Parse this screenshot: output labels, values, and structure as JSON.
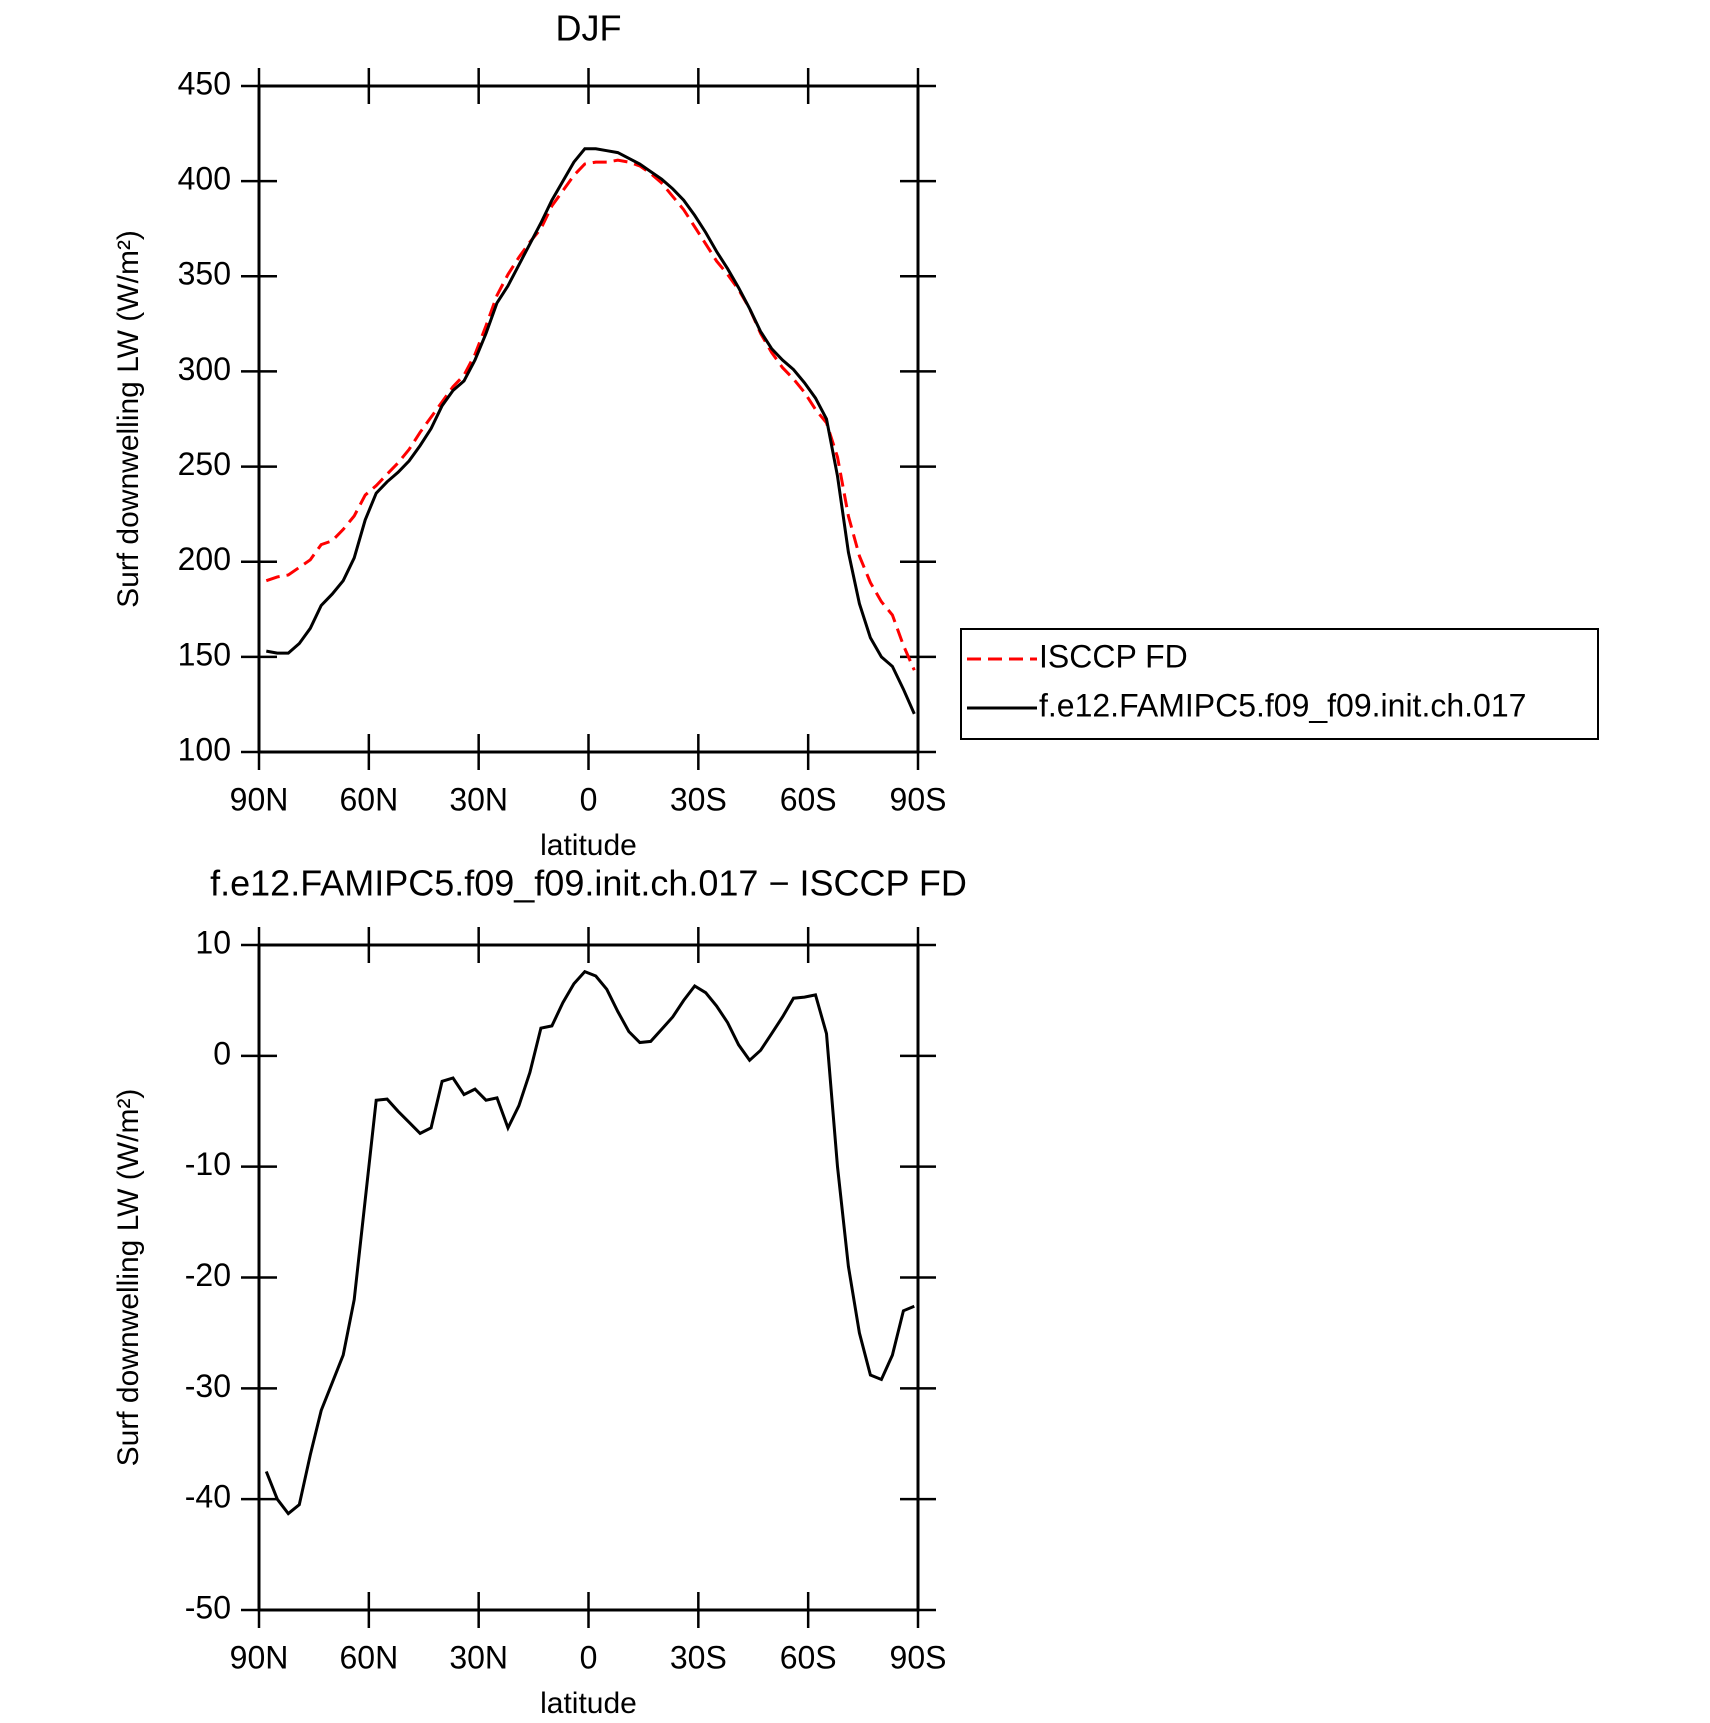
{
  "chart_data": [
    {
      "type": "line",
      "title": "DJF",
      "xlabel": "latitude",
      "ylabel": "Surf downwelling LW (W/m²)",
      "x": [
        88,
        85,
        82,
        79,
        76,
        73,
        70,
        67,
        64,
        61,
        58,
        55,
        52,
        49,
        46,
        43,
        40,
        37,
        34,
        31,
        28,
        25,
        22,
        19,
        16,
        13,
        10,
        7,
        4,
        1,
        -2,
        -5,
        -8,
        -11,
        -14,
        -17,
        -20,
        -23,
        -26,
        -29,
        -32,
        -35,
        -38,
        -41,
        -44,
        -47,
        -50,
        -53,
        -56,
        -59,
        -62,
        -65,
        -68,
        -71,
        -74,
        -77,
        -80,
        -83,
        -86,
        -89
      ],
      "series": [
        {
          "name": "ISCCP FD",
          "color": "#ff0000",
          "linestyle": "dashed",
          "values": [
            190,
            192,
            193,
            197,
            201,
            209,
            211,
            217,
            224,
            235,
            240,
            246,
            252,
            259,
            268,
            276,
            284,
            292,
            298,
            309,
            324,
            340,
            351,
            360,
            368,
            375,
            387,
            395,
            403,
            409,
            410,
            410,
            411,
            410,
            408,
            404,
            399,
            392,
            385,
            376,
            367,
            358,
            351,
            343,
            333,
            320,
            310,
            302,
            296,
            289,
            280,
            273,
            255,
            224,
            203,
            189,
            179,
            172,
            156,
            143
          ]
        },
        {
          "name": "f.e12.FAMIPC5.f09_f09.init.ch.017",
          "color": "#000000",
          "linestyle": "solid",
          "values": [
            153,
            152,
            152,
            157,
            165,
            177,
            183,
            190,
            202,
            222,
            236,
            242,
            247,
            253,
            261,
            270,
            282,
            290,
            295,
            306,
            320,
            336,
            345,
            356,
            367,
            378,
            390,
            400,
            410,
            417,
            417,
            416,
            415,
            412,
            409,
            405,
            401,
            396,
            390,
            382,
            373,
            363,
            354,
            344,
            333,
            321,
            312,
            306,
            301,
            294,
            286,
            275,
            245,
            205,
            178,
            160,
            150,
            145,
            133,
            120
          ]
        }
      ],
      "xlim": [
        90,
        -90
      ],
      "xticks": [
        {
          "value": 90,
          "label": "90N"
        },
        {
          "value": 60,
          "label": "60N"
        },
        {
          "value": 30,
          "label": "30N"
        },
        0,
        {
          "value": -30,
          "label": "30S"
        },
        {
          "value": -60,
          "label": "60S"
        },
        {
          "value": -90,
          "label": "90S"
        }
      ],
      "ylim": [
        100,
        450
      ],
      "yticks": [
        100,
        150,
        200,
        250,
        300,
        350,
        400,
        450
      ],
      "legend": "right"
    },
    {
      "type": "line",
      "title": "f.e12.FAMIPC5.f09_f09.init.ch.017 − ISCCP FD",
      "xlabel": "latitude",
      "ylabel": "Surf downwelling LW (W/m²)",
      "x": [
        88,
        85,
        82,
        79,
        76,
        73,
        70,
        67,
        64,
        61,
        58,
        55,
        52,
        49,
        46,
        43,
        40,
        37,
        34,
        31,
        28,
        25,
        22,
        19,
        16,
        13,
        10,
        7,
        4,
        1,
        -2,
        -5,
        -8,
        -11,
        -14,
        -17,
        -20,
        -23,
        -26,
        -29,
        -32,
        -35,
        -38,
        -41,
        -44,
        -47,
        -50,
        -53,
        -56,
        -59,
        -62,
        -65,
        -68,
        -71,
        -74,
        -77,
        -80,
        -83,
        -86,
        -89
      ],
      "series": [
        {
          "color": "#000000",
          "linestyle": "solid",
          "values": [
            -37.5,
            -40,
            -41.3,
            -40.5,
            -36,
            -32,
            -29.5,
            -27,
            -22,
            -13,
            -4,
            -3.9,
            -5,
            -6,
            -7,
            -6.5,
            -2.3,
            -2,
            -3.5,
            -3,
            -4,
            -3.8,
            -6.5,
            -4.5,
            -1.5,
            2.5,
            2.7,
            4.8,
            6.5,
            7.6,
            7.2,
            6,
            4,
            2.2,
            1.2,
            1.3,
            2.4,
            3.5,
            5,
            6.3,
            5.7,
            4.5,
            3,
            1,
            -0.4,
            0.5,
            2,
            3.5,
            5.2,
            5.3,
            5.5,
            2,
            -10,
            -19,
            -25,
            -28.8,
            -29.2,
            -27,
            -23,
            -22.6
          ]
        }
      ],
      "xlim": [
        90,
        -90
      ],
      "xticks": [
        {
          "value": 90,
          "label": "90N"
        },
        {
          "value": 60,
          "label": "60N"
        },
        {
          "value": 30,
          "label": "30N"
        },
        0,
        {
          "value": -30,
          "label": "30S"
        },
        {
          "value": -60,
          "label": "60S"
        },
        {
          "value": -90,
          "label": "90S"
        }
      ],
      "ylim": [
        -50,
        10
      ],
      "yticks": [
        -50,
        -40,
        -30,
        -20,
        -10,
        0,
        10
      ]
    }
  ]
}
